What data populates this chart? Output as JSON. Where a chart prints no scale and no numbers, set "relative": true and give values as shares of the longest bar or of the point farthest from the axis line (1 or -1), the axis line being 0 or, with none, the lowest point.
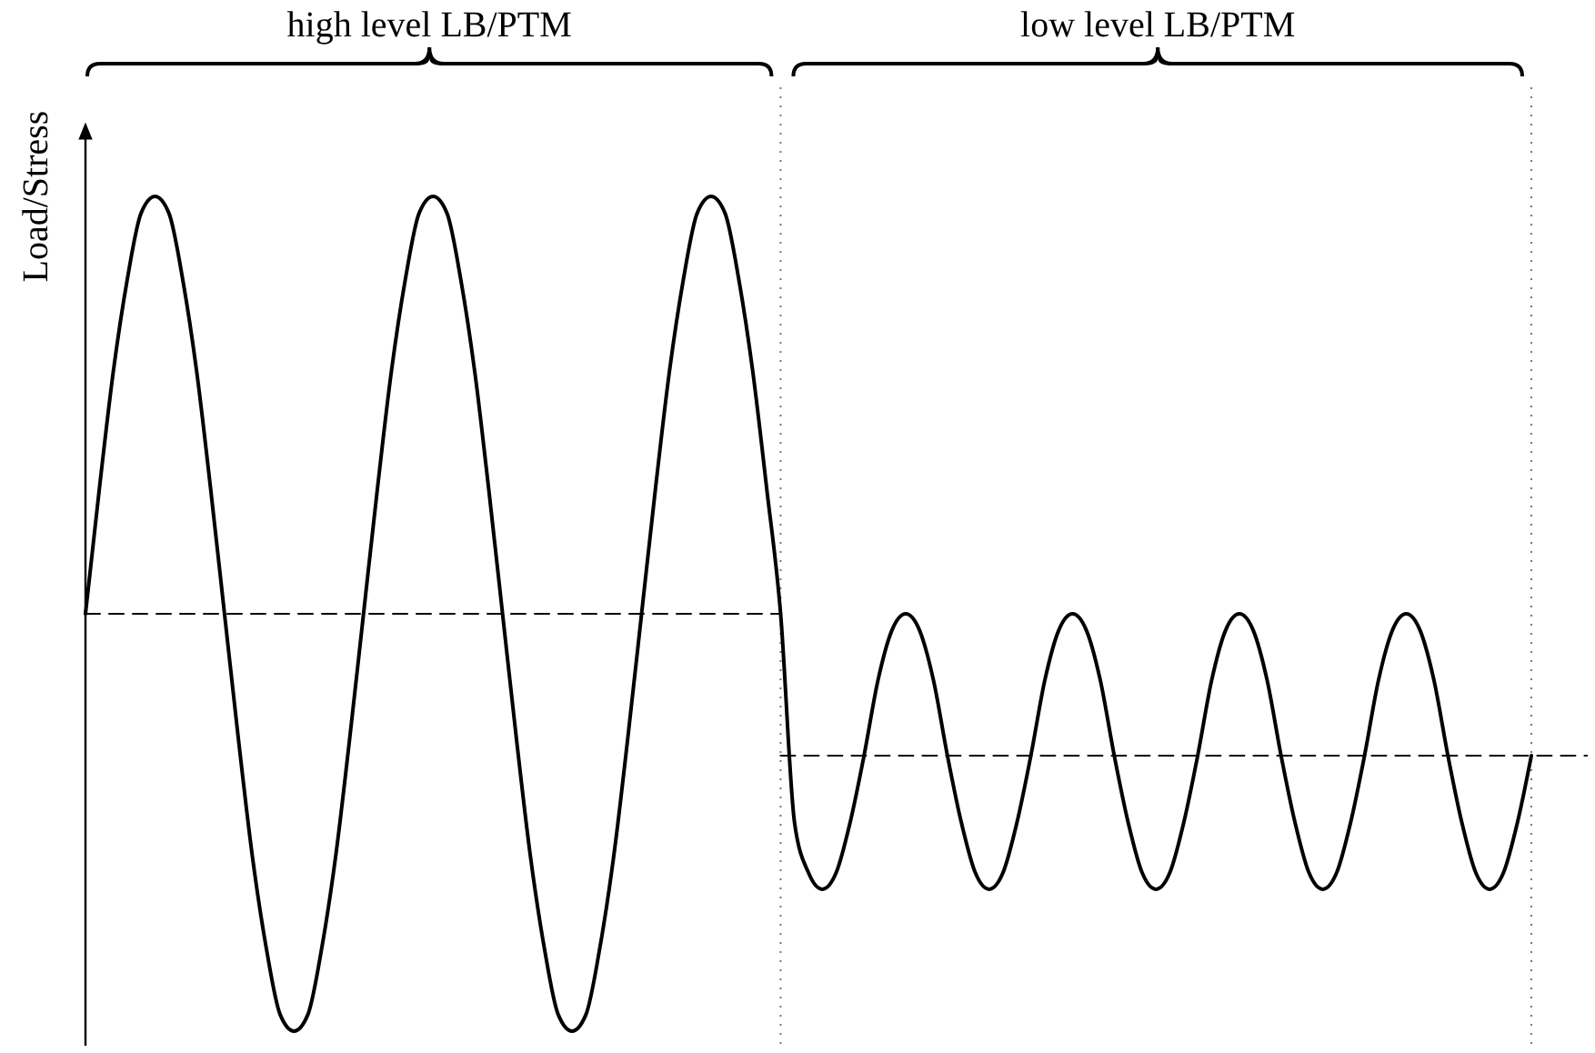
{
  "chart_data": {
    "type": "line",
    "relative": true,
    "ylabel": "Load/Stress",
    "categories": [
      null,
      null,
      null,
      null,
      null,
      null,
      null,
      null,
      null,
      null,
      null,
      null,
      null,
      null,
      null,
      null,
      null,
      null,
      null,
      null,
      null,
      null,
      null,
      null,
      null,
      null,
      null,
      null,
      null,
      null,
      null,
      null,
      null,
      null,
      null,
      null,
      null,
      null,
      null,
      null,
      null,
      null,
      null,
      null,
      null,
      null,
      null,
      null,
      null,
      null,
      null,
      null,
      null,
      null,
      null,
      null,
      null,
      null,
      null,
      null,
      null,
      null,
      null,
      null,
      null,
      null,
      null,
      null,
      null,
      null,
      null,
      null,
      null,
      null,
      null,
      null,
      null,
      null,
      null,
      null,
      null,
      null,
      null,
      null,
      null,
      null,
      null,
      null,
      null,
      null,
      null,
      null,
      null,
      null,
      null,
      null,
      null,
      null,
      null,
      null,
      null,
      null,
      null,
      null,
      null,
      null,
      null,
      null,
      null
    ],
    "series": [
      {
        "color": "#000000",
        "line_style": "solid",
        "values": [
          0.5,
          0.65,
          0.79,
          0.9,
          0.98,
          1,
          0.98,
          0.9,
          0.79,
          0.65,
          0.5,
          0.35,
          0.21,
          0.1,
          0.02,
          0,
          0.02,
          0.1,
          0.21,
          0.35,
          0.5,
          0.65,
          0.79,
          0.9,
          0.98,
          1,
          0.98,
          0.9,
          0.79,
          0.65,
          0.5,
          0.35,
          0.21,
          0.1,
          0.02,
          0,
          0.02,
          0.1,
          0.21,
          0.35,
          0.5,
          0.65,
          0.79,
          0.9,
          0.98,
          1,
          0.98,
          0.9,
          0.79,
          0.65,
          0.5,
          0.25,
          0.19,
          0.17,
          0.19,
          0.25,
          0.33,
          0.42,
          0.48,
          0.5,
          0.48,
          0.42,
          0.33,
          0.25,
          0.19,
          0.17,
          0.19,
          0.25,
          0.33,
          0.42,
          0.48,
          0.5,
          0.48,
          0.42,
          0.33,
          0.25,
          0.19,
          0.17,
          0.19,
          0.25,
          0.33,
          0.42,
          0.48,
          0.5,
          0.48,
          0.42,
          0.33,
          0.25,
          0.19,
          0.17,
          0.19,
          0.25,
          0.33,
          0.42,
          0.48,
          0.5,
          0.48,
          0.42,
          0.33,
          0.25,
          0.19,
          0.17,
          0.19,
          0.25,
          0.33,
          null,
          null,
          null,
          null
        ]
      },
      {
        "color": "#000000",
        "line_style": "dashed",
        "values": [
          0.5,
          0.5,
          0.5,
          0.5,
          0.5,
          0.5,
          0.5,
          0.5,
          0.5,
          0.5,
          0.5,
          0.5,
          0.5,
          0.5,
          0.5,
          0.5,
          0.5,
          0.5,
          0.5,
          0.5,
          0.5,
          0.5,
          0.5,
          0.5,
          0.5,
          0.5,
          0.5,
          0.5,
          0.5,
          0.5,
          0.5,
          0.5,
          0.5,
          0.5,
          0.5,
          0.5,
          0.5,
          0.5,
          0.5,
          0.5,
          0.5,
          0.5,
          0.5,
          0.5,
          0.5,
          0.5,
          0.5,
          0.5,
          0.5,
          0.5,
          0.5,
          null,
          null,
          null,
          null,
          null,
          null,
          null,
          null,
          null,
          null,
          null,
          null,
          null,
          null,
          null,
          null,
          null,
          null,
          null,
          null,
          null,
          null,
          null,
          null,
          null,
          null,
          null,
          null,
          null,
          null,
          null,
          null,
          null,
          null,
          null,
          null,
          null,
          null,
          null,
          null,
          null,
          null,
          null,
          null,
          null,
          null,
          null,
          null,
          null,
          null,
          null,
          null,
          null,
          null,
          null,
          null,
          null,
          null
        ]
      },
      {
        "color": "#000000",
        "line_style": "dashed",
        "values": [
          null,
          null,
          null,
          null,
          null,
          null,
          null,
          null,
          null,
          null,
          null,
          null,
          null,
          null,
          null,
          null,
          null,
          null,
          null,
          null,
          null,
          null,
          null,
          null,
          null,
          null,
          null,
          null,
          null,
          null,
          null,
          null,
          null,
          null,
          null,
          null,
          null,
          null,
          null,
          null,
          null,
          null,
          null,
          null,
          null,
          null,
          null,
          null,
          null,
          null,
          0.33,
          0.33,
          0.33,
          0.33,
          0.33,
          0.33,
          0.33,
          0.33,
          0.33,
          0.33,
          0.33,
          0.33,
          0.33,
          0.33,
          0.33,
          0.33,
          0.33,
          0.33,
          0.33,
          0.33,
          0.33,
          0.33,
          0.33,
          0.33,
          0.33,
          0.33,
          0.33,
          0.33,
          0.33,
          0.33,
          0.33,
          0.33,
          0.33,
          0.33,
          0.33,
          0.33,
          0.33,
          0.33,
          0.33,
          0.33,
          0.33,
          0.33,
          0.33,
          0.33,
          0.33,
          0.33,
          0.33,
          0.33,
          0.33,
          0.33,
          0.33,
          0.33,
          0.33,
          0.33,
          0.33,
          0.33,
          0.33,
          0.33,
          0.33
        ]
      }
    ],
    "annotations": [
      "high level LB/PTM",
      "low level LB/PTM"
    ]
  }
}
